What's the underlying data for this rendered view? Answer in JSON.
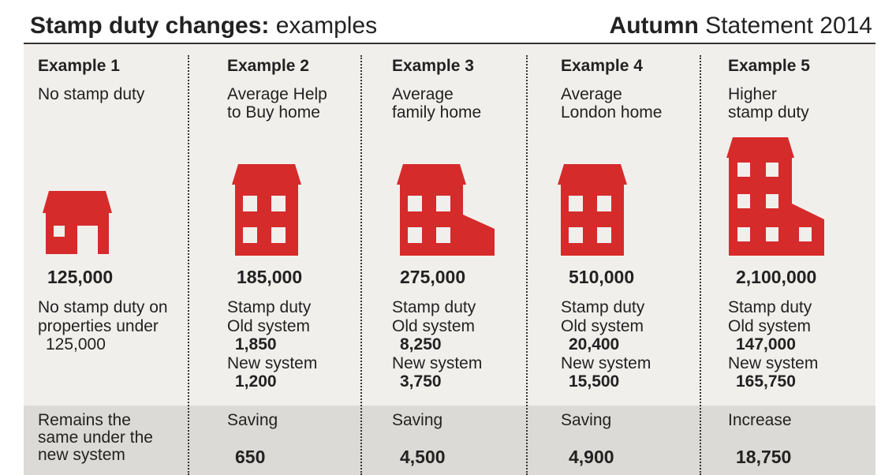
{
  "header": {
    "title_bold": "Stamp duty changes:",
    "title_rest": " examples",
    "source_bold": "Autumn",
    "source_rest": " Statement 2014"
  },
  "colors": {
    "house": "#d52b2b",
    "background": "#f1efec",
    "band": "#dcdad6"
  },
  "examples": [
    {
      "label": "Example 1",
      "desc": [
        "No stamp duty"
      ],
      "price": "125,000",
      "note": [
        "No stamp duty on",
        "properties under",
        "125,000"
      ],
      "band_label": [
        "Remains the",
        "same under the",
        "new system"
      ],
      "band_value": "",
      "house_icon": "small-house-icon"
    },
    {
      "label": "Example 2",
      "desc": [
        "Average Help",
        "to Buy home"
      ],
      "price": "185,000",
      "stamp_duty_label": "Stamp duty",
      "old_label": "Old system",
      "old_value": "1,850",
      "new_label": "New system",
      "new_value": "1,200",
      "band_label": [
        "Saving"
      ],
      "band_value": "650",
      "house_icon": "two-storey-house-icon"
    },
    {
      "label": "Example 3",
      "desc": [
        "Average",
        "family home"
      ],
      "price": "275,000",
      "stamp_duty_label": "Stamp duty",
      "old_label": "Old system",
      "old_value": "8,250",
      "new_label": "New system",
      "new_value": "3,750",
      "band_label": [
        "Saving"
      ],
      "band_value": "4,500",
      "house_icon": "family-house-icon"
    },
    {
      "label": "Example 4",
      "desc": [
        "Average",
        "London home"
      ],
      "price": "510,000",
      "stamp_duty_label": "Stamp duty",
      "old_label": "Old system",
      "old_value": "20,400",
      "new_label": "New system",
      "new_value": "15,500",
      "band_label": [
        "Saving"
      ],
      "band_value": "4,900",
      "house_icon": "london-house-icon"
    },
    {
      "label": "Example 5",
      "desc": [
        "Higher",
        "stamp duty"
      ],
      "price": "2,100,000",
      "stamp_duty_label": "Stamp duty",
      "old_label": "Old system",
      "old_value": "147,000",
      "new_label": "New system",
      "new_value": "165,750",
      "band_label": [
        "Increase"
      ],
      "band_value": "18,750",
      "house_icon": "large-house-icon"
    }
  ]
}
